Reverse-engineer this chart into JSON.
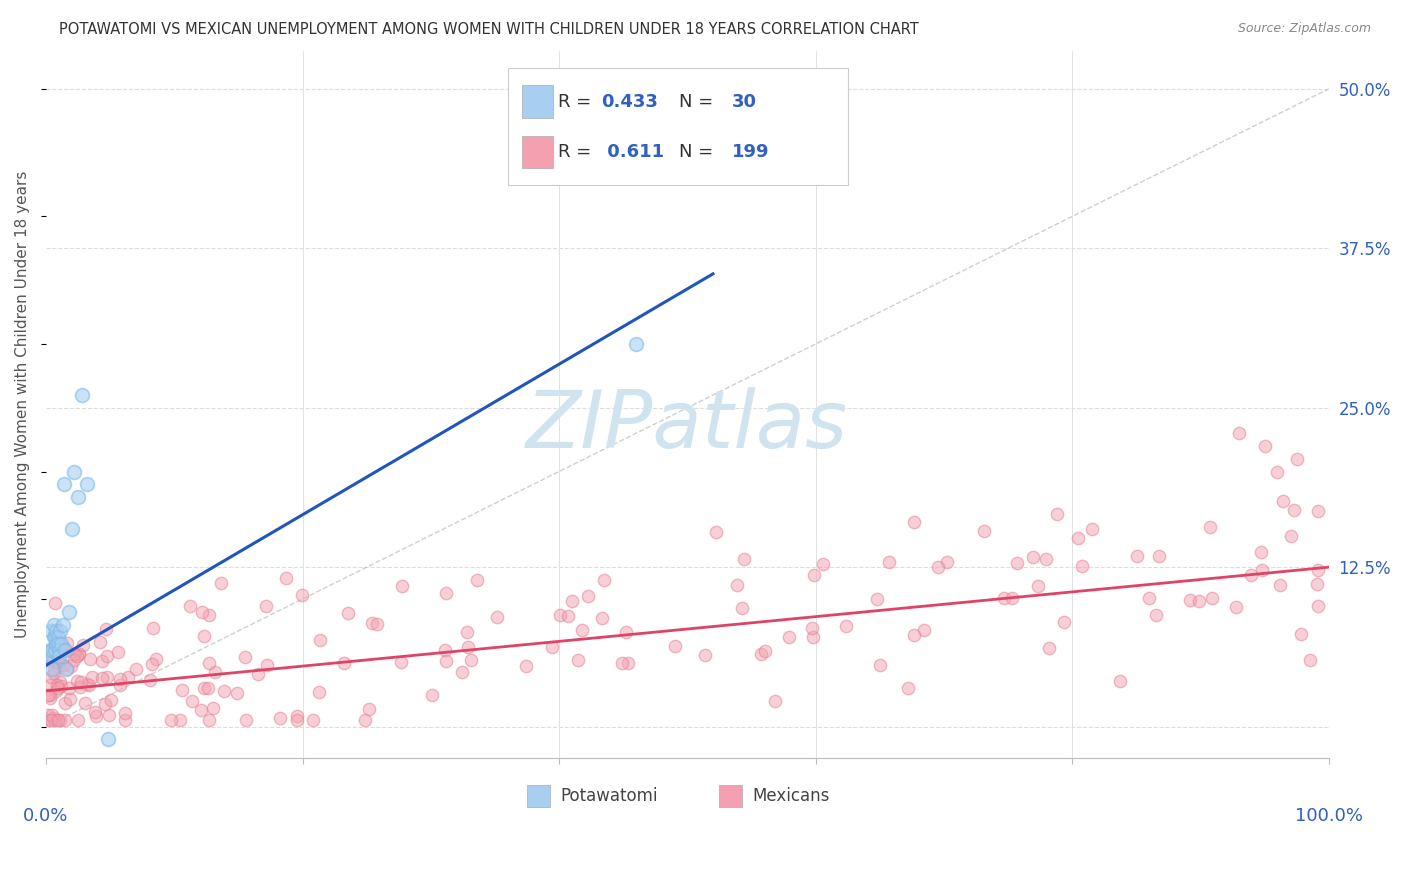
{
  "title": "POTAWATOMI VS MEXICAN UNEMPLOYMENT AMONG WOMEN WITH CHILDREN UNDER 18 YEARS CORRELATION CHART",
  "source": "Source: ZipAtlas.com",
  "ylabel": "Unemployment Among Women with Children Under 18 years",
  "ytick_values": [
    0.0,
    0.125,
    0.25,
    0.375,
    0.5
  ],
  "ytick_labels": [
    "0.0%",
    "12.5%",
    "25.0%",
    "37.5%",
    "50.0%"
  ],
  "xlim": [
    0.0,
    1.0
  ],
  "ylim": [
    -0.025,
    0.53
  ],
  "r_potawatomi": 0.433,
  "n_potawatomi": 30,
  "r_mexicans": 0.611,
  "n_mexicans": 199,
  "color_potawatomi_fill": "#a8cff0",
  "color_potawatomi_edge": "#7eb8e8",
  "color_mexicans_fill": "#f4a0b0",
  "color_mexicans_edge": "#e08090",
  "color_blue_line": "#2255bb",
  "color_pink_line": "#dd4466",
  "color_diag_line": "#bbbbbb",
  "color_grid": "#dddddd",
  "color_axis_text": "#3060c0",
  "color_legend_text_dark": "#333333",
  "color_legend_text_blue": "#3060c0",
  "color_title": "#333333",
  "color_source": "#888888",
  "color_ylabel": "#555555",
  "watermark_text": "ZIPatlas",
  "watermark_color": "#d0e4f0",
  "background_color": "#ffffff",
  "pot_x": [
    0.002,
    0.003,
    0.004,
    0.005,
    0.005,
    0.005,
    0.006,
    0.006,
    0.007,
    0.007,
    0.008,
    0.008,
    0.009,
    0.009,
    0.01,
    0.01,
    0.011,
    0.012,
    0.013,
    0.014,
    0.015,
    0.016,
    0.018,
    0.02,
    0.022,
    0.025,
    0.028,
    0.032,
    0.048,
    0.46
  ],
  "pot_y": [
    0.055,
    0.06,
    0.075,
    0.055,
    0.045,
    0.06,
    0.07,
    0.08,
    0.06,
    0.07,
    0.065,
    0.075,
    0.07,
    0.065,
    0.06,
    0.055,
    0.075,
    0.065,
    0.08,
    0.19,
    0.06,
    0.045,
    0.09,
    0.155,
    0.2,
    0.18,
    0.26,
    0.19,
    -0.01,
    0.3
  ],
  "blue_line_x": [
    0.0,
    0.52
  ],
  "blue_line_y": [
    0.048,
    0.355
  ],
  "pink_line_x": [
    0.0,
    1.0
  ],
  "pink_line_y": [
    0.028,
    0.125
  ],
  "diag_line_x": [
    0.0,
    1.0
  ],
  "diag_line_y": [
    0.0,
    0.5
  ]
}
